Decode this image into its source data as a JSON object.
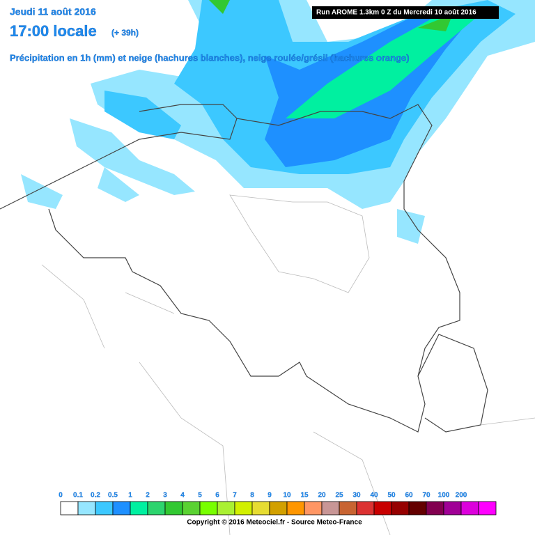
{
  "header": {
    "date": "Jeudi 11 août 2016",
    "time": "17:00 locale",
    "lead": "(+ 39h)",
    "description": "Précipitation en 1h (mm) et neige (hachures blanches), neige roulée/grésil (hachures orange)",
    "run": "Run AROME 1.3km 0 Z du Mercredi 10 août 2016"
  },
  "legend": [
    {
      "label": "0",
      "color": "#ffffff"
    },
    {
      "label": "0.1",
      "color": "#96e6ff"
    },
    {
      "label": "0.2",
      "color": "#3cc8ff"
    },
    {
      "label": "0.5",
      "color": "#1e90ff"
    },
    {
      "label": "1",
      "color": "#00f0a0"
    },
    {
      "label": "2",
      "color": "#2dd46e"
    },
    {
      "label": "3",
      "color": "#32c832"
    },
    {
      "label": "4",
      "color": "#5ad232"
    },
    {
      "label": "5",
      "color": "#78ff00"
    },
    {
      "label": "6",
      "color": "#aaf032"
    },
    {
      "label": "7",
      "color": "#d2f000"
    },
    {
      "label": "8",
      "color": "#e6dc32"
    },
    {
      "label": "9",
      "color": "#d2a000"
    },
    {
      "label": "10",
      "color": "#ff9600"
    },
    {
      "label": "15",
      "color": "#ff9664"
    },
    {
      "label": "20",
      "color": "#c89696"
    },
    {
      "label": "25",
      "color": "#c86432"
    },
    {
      "label": "30",
      "color": "#dc3232"
    },
    {
      "label": "40",
      "color": "#c80000"
    },
    {
      "label": "50",
      "color": "#960000"
    },
    {
      "label": "60",
      "color": "#640000"
    },
    {
      "label": "70",
      "color": "#820050"
    },
    {
      "label": "100",
      "color": "#a00096"
    },
    {
      "label": "200",
      "color": "#dc00dc"
    },
    {
      "label": "",
      "color": "#ff00ff"
    }
  ],
  "copyright": "Copyright © 2016 Meteociel.fr - Source Meteo-France"
}
